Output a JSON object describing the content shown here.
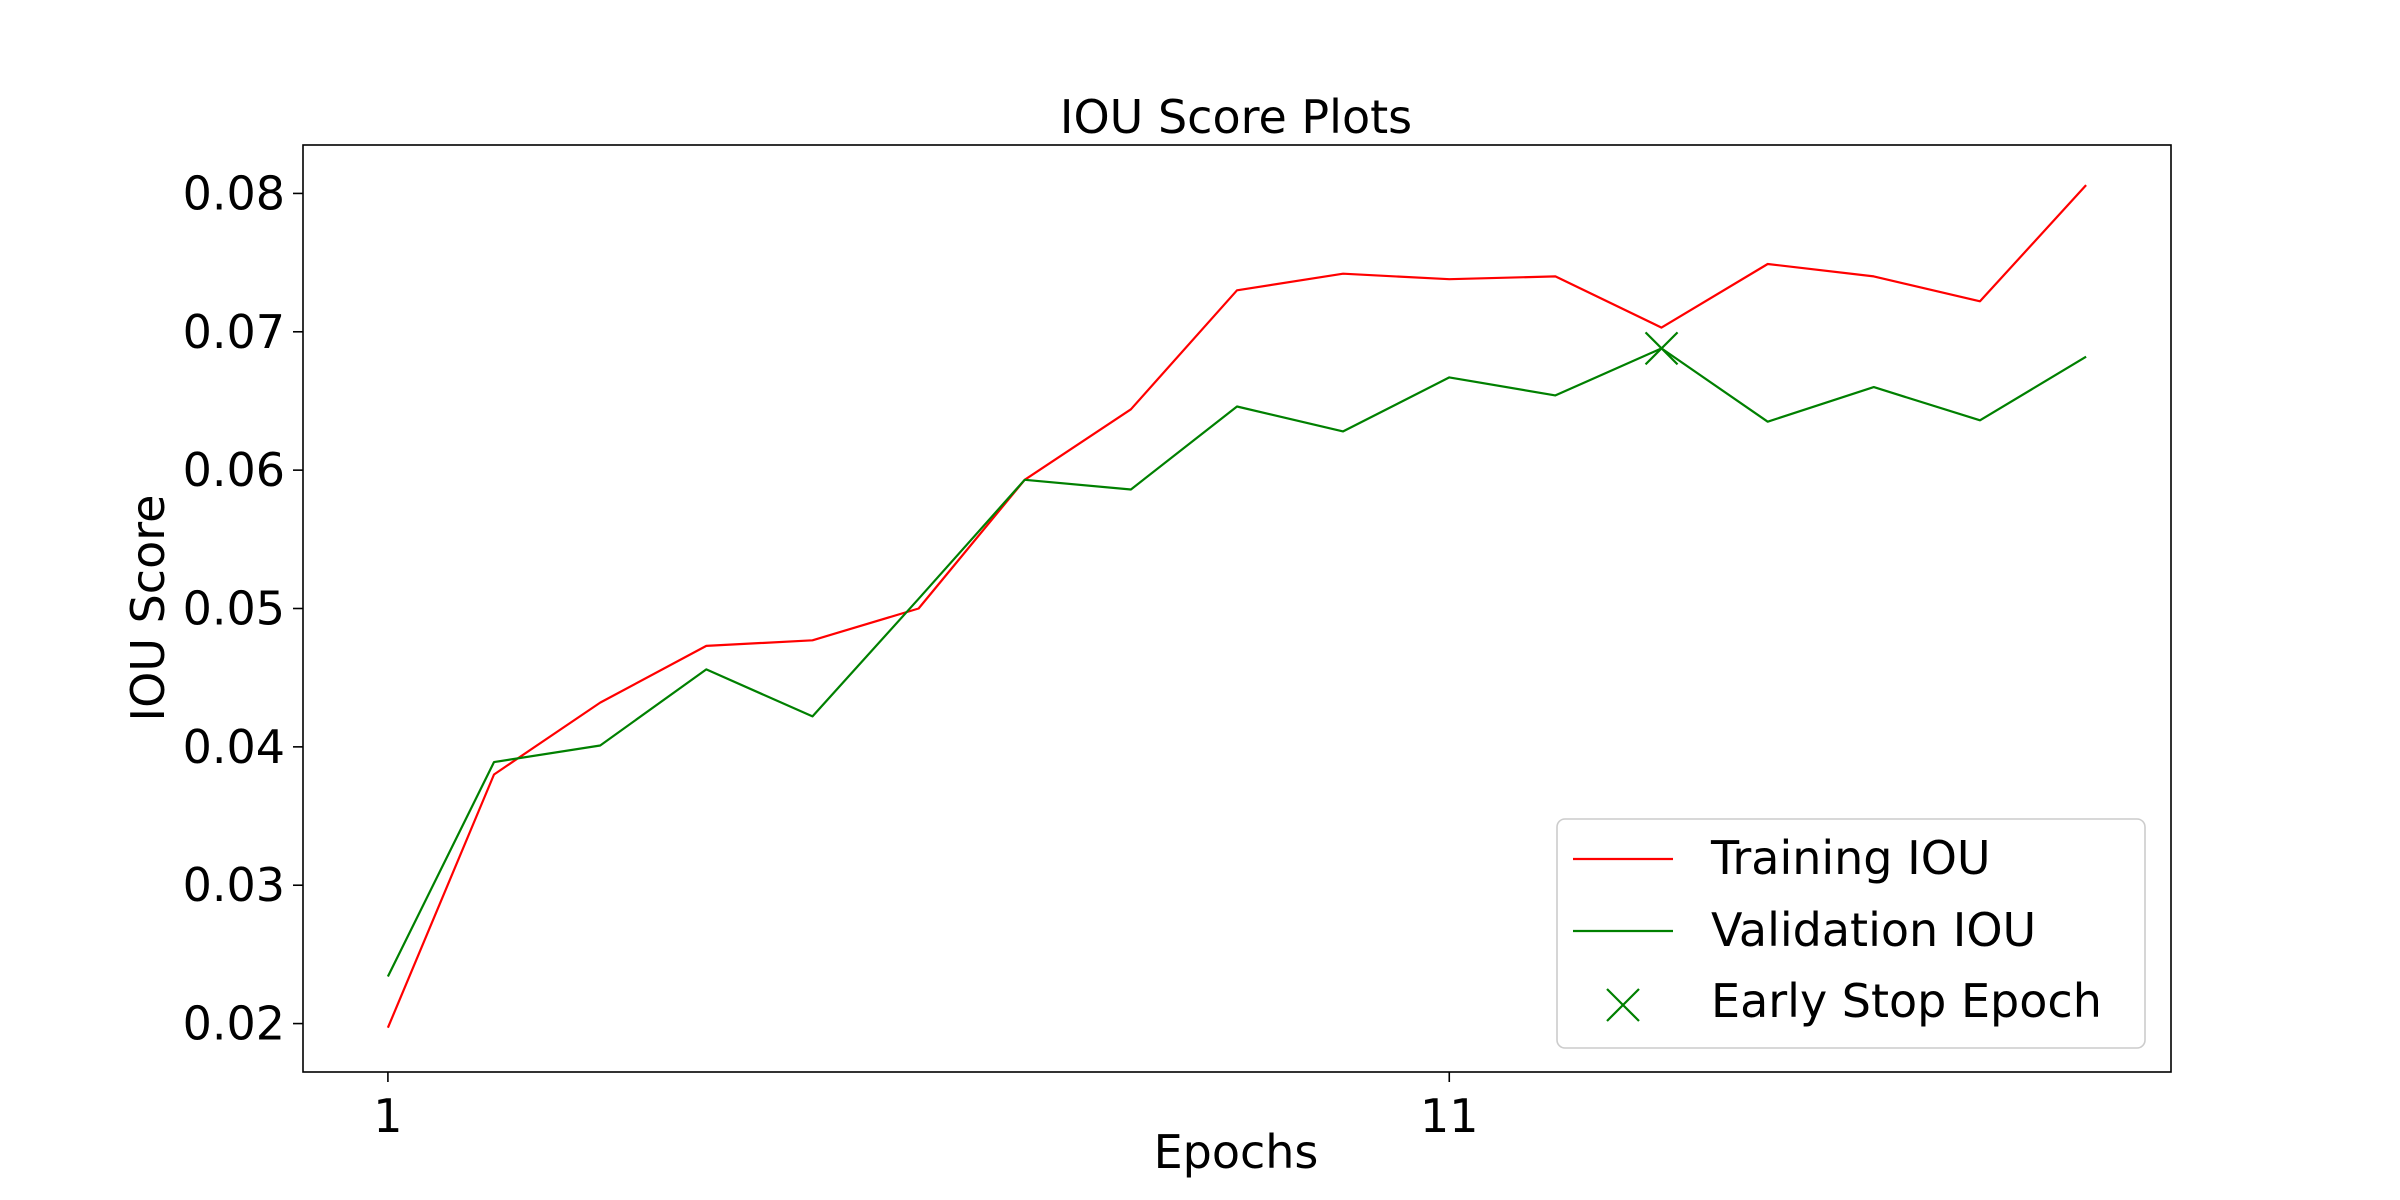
{
  "chart_data": {
    "type": "line",
    "title": "IOU Score Plots",
    "xlabel": "Epochs",
    "ylabel": "IOU Score",
    "x": [
      1,
      2,
      3,
      4,
      5,
      6,
      7,
      8,
      9,
      10,
      11,
      12,
      13,
      14,
      15,
      16,
      17
    ],
    "xticks": [
      1,
      11
    ],
    "xticklabels": [
      "1",
      "11"
    ],
    "xlim": [
      0.2,
      17.8
    ],
    "yticks": [
      0.02,
      0.03,
      0.04,
      0.05,
      0.06,
      0.07,
      0.08
    ],
    "yticklabels": [
      "0.02",
      "0.03",
      "0.04",
      "0.05",
      "0.06",
      "0.07",
      "0.08"
    ],
    "ylim": [
      0.0165,
      0.0835
    ],
    "grid": false,
    "legend_position": "lower right",
    "series": [
      {
        "name": "Training IOU",
        "color": "#ff0000",
        "values": [
          0.0197,
          0.038,
          0.0432,
          0.0473,
          0.0477,
          0.05,
          0.0593,
          0.0644,
          0.073,
          0.0742,
          0.0738,
          0.074,
          0.0703,
          0.0749,
          0.074,
          0.0722,
          0.0806
        ]
      },
      {
        "name": "Validation IOU",
        "color": "#008000",
        "values": [
          0.0234,
          0.0389,
          0.0401,
          0.0456,
          0.0422,
          0.0507,
          0.0593,
          0.0586,
          0.0646,
          0.0628,
          0.0667,
          0.0654,
          0.0688,
          0.0635,
          0.066,
          0.0636,
          0.0682
        ]
      }
    ],
    "markers": [
      {
        "name": "Early Stop Epoch",
        "color": "#008000",
        "symbol": "x",
        "x": 13,
        "y": 0.0688
      }
    ]
  }
}
